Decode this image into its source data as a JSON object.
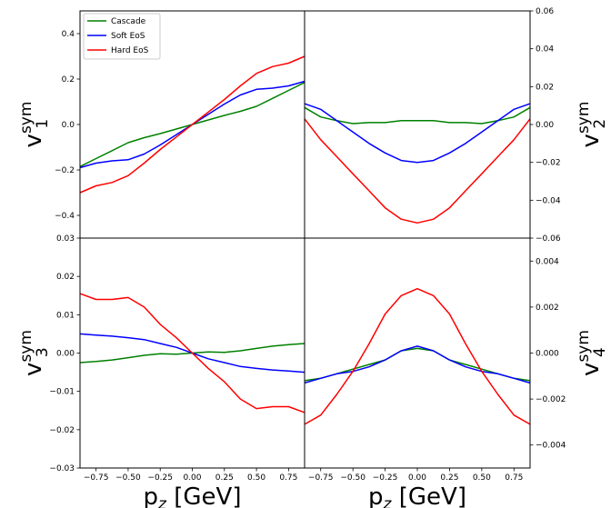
{
  "chart_data": [
    {
      "type": "line",
      "panel": "top-left",
      "ylabel": "v1sym",
      "ylabel_main": "v",
      "ylabel_sup": "sym",
      "ylabel_sub": "1",
      "ylim": [
        -0.5,
        0.5
      ],
      "yticks": [
        -0.4,
        -0.2,
        0.0,
        0.2,
        0.4
      ],
      "ytick_labels": [
        "−0.4",
        "−0.2",
        "0.0",
        "0.2",
        "0.4"
      ],
      "legend_position": "top-left",
      "x": [
        -0.875,
        -0.75,
        -0.625,
        -0.5,
        -0.375,
        -0.25,
        -0.125,
        0.0,
        0.125,
        0.25,
        0.375,
        0.5,
        0.625,
        0.75,
        0.875
      ],
      "series": [
        {
          "name": "Cascade",
          "color": "#008000",
          "values": [
            -0.185,
            -0.15,
            -0.115,
            -0.08,
            -0.058,
            -0.04,
            -0.02,
            0.0,
            0.02,
            0.04,
            0.058,
            0.08,
            0.115,
            0.15,
            0.185
          ]
        },
        {
          "name": "Soft EoS",
          "color": "#0000ff",
          "values": [
            -0.19,
            -0.17,
            -0.16,
            -0.155,
            -0.13,
            -0.09,
            -0.045,
            0.0,
            0.045,
            0.09,
            0.13,
            0.155,
            0.16,
            0.17,
            0.19
          ]
        },
        {
          "name": "Hard EoS",
          "color": "#ff0000",
          "values": [
            -0.3,
            -0.27,
            -0.255,
            -0.225,
            -0.17,
            -0.11,
            -0.055,
            0.0,
            0.055,
            0.11,
            0.17,
            0.225,
            0.255,
            0.27,
            0.3
          ]
        }
      ]
    },
    {
      "type": "line",
      "panel": "top-right",
      "ylabel": "v2sym",
      "ylabel_main": "v",
      "ylabel_sup": "sym",
      "ylabel_sub": "2",
      "ylim": [
        -0.06,
        0.06
      ],
      "yticks": [
        -0.06,
        -0.04,
        -0.02,
        0.0,
        0.02,
        0.04,
        0.06
      ],
      "ytick_labels": [
        "−0.06",
        "−0.04",
        "−0.02",
        "0.00",
        "0.02",
        "0.04",
        "0.06"
      ],
      "x": [
        -0.875,
        -0.75,
        -0.625,
        -0.5,
        -0.375,
        -0.25,
        -0.125,
        0.0,
        0.125,
        0.25,
        0.375,
        0.5,
        0.625,
        0.75,
        0.875
      ],
      "series": [
        {
          "name": "Cascade",
          "color": "#008000",
          "values": [
            0.009,
            0.004,
            0.002,
            0.0005,
            0.001,
            0.001,
            0.002,
            0.002,
            0.002,
            0.001,
            0.001,
            0.0005,
            0.002,
            0.004,
            0.009
          ]
        },
        {
          "name": "Soft EoS",
          "color": "#0000ff",
          "values": [
            0.011,
            0.008,
            0.002,
            -0.004,
            -0.01,
            -0.015,
            -0.019,
            -0.02,
            -0.019,
            -0.015,
            -0.01,
            -0.004,
            0.002,
            0.008,
            0.011
          ]
        },
        {
          "name": "Hard EoS",
          "color": "#ff0000",
          "values": [
            0.003,
            -0.008,
            -0.017,
            -0.026,
            -0.035,
            -0.044,
            -0.05,
            -0.052,
            -0.05,
            -0.044,
            -0.035,
            -0.026,
            -0.017,
            -0.008,
            0.003
          ]
        }
      ]
    },
    {
      "type": "line",
      "panel": "bottom-left",
      "ylabel": "v3sym",
      "ylabel_main": "v",
      "ylabel_sup": "sym",
      "ylabel_sub": "3",
      "xlabel": "pz [GeV]",
      "xlabel_main": "p",
      "xlabel_sub": "z",
      "xlabel_rest": " [GeV]",
      "ylim": [
        -0.03,
        0.03
      ],
      "yticks": [
        -0.03,
        -0.02,
        -0.01,
        0.0,
        0.01,
        0.02,
        0.03
      ],
      "ytick_labels": [
        "−0.03",
        "−0.02",
        "−0.01",
        "0.00",
        "0.01",
        "0.02",
        "0.03"
      ],
      "xticks": [
        -0.75,
        -0.5,
        -0.25,
        0.0,
        0.25,
        0.5,
        0.75
      ],
      "xtick_labels": [
        "−0.75",
        "−0.50",
        "−0.25",
        "0.00",
        "0.25",
        "0.50",
        "0.75"
      ],
      "x": [
        -0.875,
        -0.75,
        -0.625,
        -0.5,
        -0.375,
        -0.25,
        -0.125,
        0.0,
        0.125,
        0.25,
        0.375,
        0.5,
        0.625,
        0.75,
        0.875
      ],
      "series": [
        {
          "name": "Cascade",
          "color": "#008000",
          "values": [
            -0.0025,
            -0.0022,
            -0.0018,
            -0.0012,
            -0.0006,
            -0.0002,
            -0.0003,
            0.0,
            0.0003,
            0.0002,
            0.0006,
            0.0012,
            0.0018,
            0.0022,
            0.0025
          ]
        },
        {
          "name": "Soft EoS",
          "color": "#0000ff",
          "values": [
            0.005,
            0.0047,
            0.0044,
            0.004,
            0.0035,
            0.0025,
            0.0015,
            0.0,
            -0.0015,
            -0.0025,
            -0.0035,
            -0.004,
            -0.0044,
            -0.0047,
            -0.005
          ]
        },
        {
          "name": "Hard EoS",
          "color": "#ff0000",
          "values": [
            0.0155,
            0.014,
            0.014,
            0.0145,
            0.012,
            0.0075,
            0.004,
            0.0,
            -0.004,
            -0.0075,
            -0.012,
            -0.0145,
            -0.014,
            -0.014,
            -0.0155
          ]
        }
      ]
    },
    {
      "type": "line",
      "panel": "bottom-right",
      "ylabel": "v4sym",
      "ylabel_main": "v",
      "ylabel_sup": "sym",
      "ylabel_sub": "4",
      "xlabel": "pz [GeV]",
      "xlabel_main": "p",
      "xlabel_sub": "z",
      "xlabel_rest": " [GeV]",
      "ylim": [
        -0.005,
        0.005
      ],
      "yticks": [
        -0.004,
        -0.002,
        0.0,
        0.002,
        0.004
      ],
      "ytick_labels": [
        "−0.004",
        "−0.002",
        "0.000",
        "0.002",
        "0.004"
      ],
      "xticks": [
        -0.75,
        -0.5,
        -0.25,
        0.0,
        0.25,
        0.5,
        0.75
      ],
      "xtick_labels": [
        "−0.75",
        "−0.50",
        "−0.25",
        "0.00",
        "0.25",
        "0.50",
        "0.75"
      ],
      "x": [
        -0.875,
        -0.75,
        -0.625,
        -0.5,
        -0.375,
        -0.25,
        -0.125,
        0.0,
        0.125,
        0.25,
        0.375,
        0.5,
        0.625,
        0.75,
        0.875
      ],
      "series": [
        {
          "name": "Cascade",
          "color": "#008000",
          "values": [
            -0.0012,
            -0.0011,
            -0.0009,
            -0.0007,
            -0.0005,
            -0.0003,
            0.0001,
            0.0002,
            0.0001,
            -0.0003,
            -0.0005,
            -0.0007,
            -0.0009,
            -0.0011,
            -0.0012
          ]
        },
        {
          "name": "Soft EoS",
          "color": "#0000ff",
          "values": [
            -0.0013,
            -0.0011,
            -0.0009,
            -0.0008,
            -0.0006,
            -0.0003,
            0.0001,
            0.0003,
            0.0001,
            -0.0003,
            -0.0006,
            -0.0008,
            -0.0009,
            -0.0011,
            -0.0013
          ]
        },
        {
          "name": "Hard EoS",
          "color": "#ff0000",
          "values": [
            -0.0031,
            -0.0027,
            -0.0018,
            -0.0008,
            0.0004,
            0.0017,
            0.0025,
            0.0028,
            0.0025,
            0.0017,
            0.0004,
            -0.0008,
            -0.0018,
            -0.0027,
            -0.0031
          ]
        }
      ]
    }
  ]
}
